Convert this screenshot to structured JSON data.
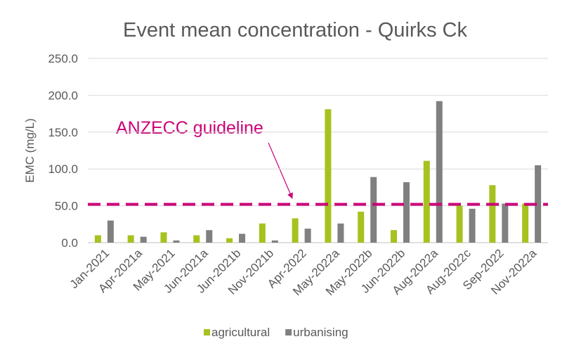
{
  "chart_data": {
    "type": "bar",
    "title": "Event mean concentration - Quirks Ck",
    "y_axis_label": "EMC (mg/L)",
    "categories": [
      "Jan-2021",
      "Apr-2021a",
      "May-2021",
      "Jun-2021a",
      "Jun-2021b",
      "Nov-2021b",
      "Apr-2022",
      "May-2022a",
      "May-2022b",
      "Jun-2022b",
      "Aug-2022a",
      "Aug-2022c",
      "Sep-2022",
      "Nov-2022a"
    ],
    "series": [
      {
        "name": "agricultural",
        "color": "#a5c21f",
        "values": [
          10,
          10,
          14,
          10,
          6,
          26,
          33,
          181,
          42,
          17,
          111,
          50,
          78,
          53
        ]
      },
      {
        "name": "urbanising",
        "color": "#808080",
        "values": [
          30,
          8,
          3,
          17,
          12,
          3,
          19,
          26,
          89,
          82,
          192,
          46,
          53,
          105
        ]
      }
    ],
    "reference_line": {
      "label": "ANZECC guideline",
      "value": 52,
      "color": "#cc0077"
    },
    "ylim": [
      0,
      250
    ],
    "yticks": [
      {
        "value": 0,
        "label": "0.0"
      },
      {
        "value": 50,
        "label": "50.0"
      },
      {
        "value": 100,
        "label": "100.0"
      },
      {
        "value": 150,
        "label": "150.0"
      },
      {
        "value": 200,
        "label": "200.0"
      },
      {
        "value": 250,
        "label": "250.0"
      }
    ],
    "grid": true,
    "legend": "bottom"
  }
}
